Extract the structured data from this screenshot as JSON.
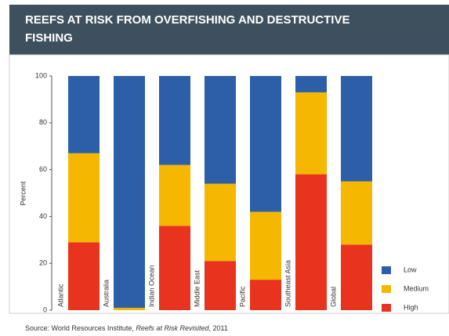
{
  "chart_data": {
    "type": "stacked-bar",
    "title": "REEFS AT RISK FROM OVERFISHING AND DESTRUCTIVE FISHING",
    "y_label": "Percent",
    "categories": [
      "Atlantic",
      "Australia",
      "Indian Ocean",
      "Middle East",
      "Pacific",
      "Southeast Asia",
      "Global"
    ],
    "series": [
      {
        "name": "High",
        "color": "#e8331f",
        "values": [
          29,
          0,
          36,
          21,
          13,
          58,
          28
        ]
      },
      {
        "name": "Medium",
        "color": "#f5b700",
        "values": [
          38,
          1,
          26,
          33,
          29,
          35,
          27
        ]
      },
      {
        "name": "Low",
        "color": "#2c5fa8",
        "values": [
          33,
          99,
          38,
          46,
          58,
          7,
          45
        ]
      }
    ],
    "ylim": [
      0,
      100
    ],
    "yticks": [
      0,
      20,
      40,
      60,
      80,
      100
    ],
    "legend_order": [
      "Low",
      "Medium",
      "High"
    ],
    "source": {
      "prefix": "Source: World Resources Institute,",
      "title": "Reefs at Risk Revisited",
      "suffix": ", 2011"
    }
  }
}
